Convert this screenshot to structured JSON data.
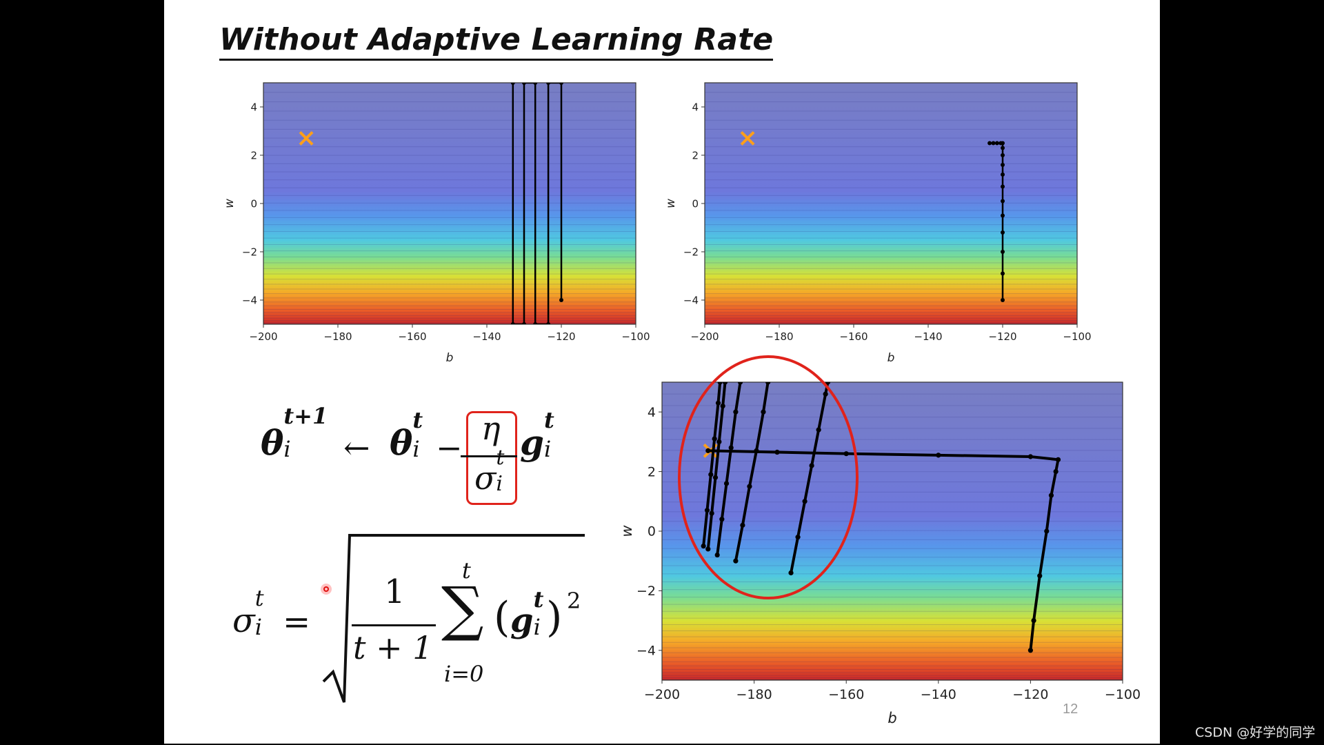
{
  "slide": {
    "title": "Without Adaptive Learning Rate",
    "page_number": "12",
    "watermark": "CSDN @好学的同学",
    "highlight_color": "#e0231b",
    "marker_color": "#ff9f1a"
  },
  "equations": {
    "update_rule": {
      "theta": "θ",
      "sub": "i",
      "sup_next": "t+1",
      "arrow": "←",
      "sup": "t",
      "minus": "−",
      "eta": "η",
      "sigma": "σ",
      "g": "g"
    },
    "sigma_rule": {
      "sigma": "σ",
      "sub": "i",
      "sup": "t",
      "equals": "=",
      "one": "1",
      "denominator": "t + 1",
      "sum": "∑",
      "sum_top": "t",
      "sum_bottom": "i=0",
      "g": "g",
      "power": "2",
      "lparen": "(",
      "rparen": ")"
    }
  },
  "chart_data": [
    {
      "type": "line",
      "subtype": "contour-with-trajectory",
      "xlabel": "b",
      "ylabel": "w",
      "xlim": [
        -200,
        -100
      ],
      "ylim": [
        -5,
        5
      ],
      "xticks": [
        "−200",
        "−180",
        "−160",
        "−140",
        "−120",
        "−100"
      ],
      "yticks": [
        "−4",
        "−2",
        "0",
        "2",
        "4"
      ],
      "target": {
        "b": -188.5,
        "w": 2.7
      },
      "series": [
        {
          "values": [
            [
              -120,
              -4
            ],
            [
              -120,
              5
            ],
            [
              -123.5,
              5
            ],
            [
              -123.5,
              -5
            ],
            [
              -127,
              -5
            ],
            [
              -127,
              5
            ],
            [
              -130,
              5
            ],
            [
              -130,
              -5
            ],
            [
              -133,
              -5
            ],
            [
              -133,
              5
            ]
          ]
        }
      ]
    },
    {
      "type": "line",
      "subtype": "contour-with-trajectory",
      "xlabel": "b",
      "ylabel": "w",
      "xlim": [
        -200,
        -100
      ],
      "ylim": [
        -5,
        5
      ],
      "xticks": [
        "−200",
        "−180",
        "−160",
        "−140",
        "−120",
        "−100"
      ],
      "yticks": [
        "−4",
        "−2",
        "0",
        "2",
        "4"
      ],
      "target": {
        "b": -188.5,
        "w": 2.7
      },
      "series": [
        {
          "values": [
            [
              -120,
              -4
            ],
            [
              -120,
              -2.9
            ],
            [
              -120,
              -2
            ],
            [
              -120,
              -1.2
            ],
            [
              -120,
              -0.5
            ],
            [
              -120,
              0.1
            ],
            [
              -120,
              0.7
            ],
            [
              -120,
              1.2
            ],
            [
              -120,
              1.6
            ],
            [
              -120,
              2.0
            ],
            [
              -120,
              2.3
            ],
            [
              -120,
              2.5
            ],
            [
              -120.5,
              2.5
            ],
            [
              -121.5,
              2.5
            ],
            [
              -122.5,
              2.5
            ],
            [
              -123.5,
              2.5
            ]
          ]
        }
      ]
    },
    {
      "type": "line",
      "subtype": "contour-with-trajectory",
      "xlabel": "b",
      "ylabel": "w",
      "xlim": [
        -200,
        -100
      ],
      "ylim": [
        -5,
        5
      ],
      "xticks": [
        "−200",
        "−180",
        "−160",
        "−140",
        "−120",
        "−100"
      ],
      "yticks": [
        "−4",
        "−2",
        "0",
        "2",
        "4"
      ],
      "target": {
        "b": -189.5,
        "w": 2.7
      },
      "series": [
        {
          "values": [
            [
              -120,
              -4
            ],
            [
              -119.3,
              -3
            ],
            [
              -118,
              -1.5
            ],
            [
              -116.5,
              0
            ],
            [
              -115.5,
              1.2
            ],
            [
              -114.5,
              2.0
            ],
            [
              -114,
              2.4
            ],
            [
              -120,
              2.5
            ],
            [
              -140,
              2.55
            ],
            [
              -160,
              2.6
            ],
            [
              -175,
              2.65
            ],
            [
              -190,
              2.7
            ]
          ]
        },
        {
          "values": [
            [
              -172,
              -1.4
            ],
            [
              -170.5,
              -0.2
            ],
            [
              -169,
              1.0
            ],
            [
              -167.5,
              2.2
            ],
            [
              -166,
              3.4
            ],
            [
              -164.5,
              4.6
            ],
            [
              -164,
              5
            ]
          ]
        },
        {
          "values": [
            [
              -184,
              -1.0
            ],
            [
              -182.5,
              0.2
            ],
            [
              -181,
              1.5
            ],
            [
              -179.5,
              2.7
            ],
            [
              -178,
              4.0
            ],
            [
              -177,
              5
            ]
          ]
        },
        {
          "values": [
            [
              -188,
              -0.8
            ],
            [
              -187,
              0.4
            ],
            [
              -186,
              1.6
            ],
            [
              -185,
              2.8
            ],
            [
              -184,
              4.0
            ],
            [
              -183,
              5
            ]
          ]
        },
        {
          "values": [
            [
              -190,
              -0.6
            ],
            [
              -189.2,
              0.6
            ],
            [
              -188.4,
              1.8
            ],
            [
              -187.6,
              3.0
            ],
            [
              -186.8,
              4.2
            ],
            [
              -186.3,
              5
            ]
          ]
        },
        {
          "values": [
            [
              -191,
              -0.5
            ],
            [
              -190.2,
              0.7
            ],
            [
              -189.4,
              1.9
            ],
            [
              -188.6,
              3.1
            ],
            [
              -187.8,
              4.3
            ],
            [
              -187.4,
              5
            ]
          ]
        }
      ]
    }
  ]
}
